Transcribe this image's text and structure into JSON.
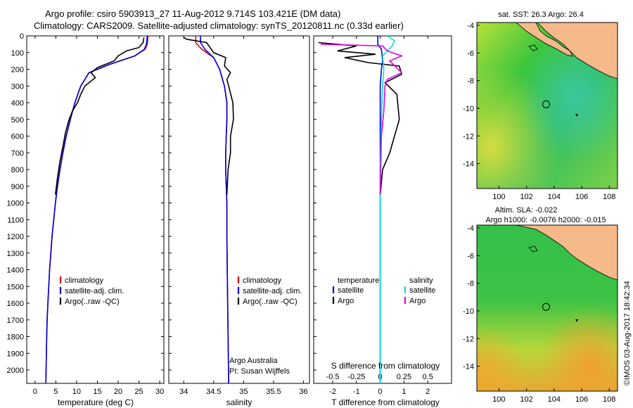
{
  "header": {
    "line1": "Argo profile: csiro 5903913_27 11-Aug-2012 9.714S 103.421E (DM data)",
    "line2": "Climatology: CARS2009. Satellite-adjusted climatology: synTS_20120811.nc (0.33d earlier)"
  },
  "colors": {
    "climatology": "#e00000",
    "satellite": "#0000e0",
    "argo": "#000000",
    "salinity_satellite": "#00e0e0",
    "salinity_argo": "#e000e0",
    "land": "#f5b98a"
  },
  "chart_data": [
    {
      "type": "line",
      "id": "temperature",
      "xlabel": "temperature (deg C)",
      "xlim": [
        -2,
        31
      ],
      "xticks": [
        0,
        5,
        10,
        15,
        20,
        25,
        30
      ],
      "ylim": [
        2080,
        0
      ],
      "yticks": [
        0,
        100,
        200,
        300,
        400,
        500,
        600,
        700,
        800,
        900,
        1000,
        1100,
        1200,
        1300,
        1400,
        1500,
        1600,
        1700,
        1800,
        1900,
        2000
      ],
      "legend": [
        "climatology",
        "satellite-adj. clim.",
        "Argo(..raw -QC)"
      ],
      "series": [
        {
          "name": "climatology",
          "x": [
            27.2,
            27.0,
            26.5,
            24.0,
            18.0,
            13.0,
            11.0,
            9.6,
            8.5,
            7.5,
            6.7,
            6.0,
            5.4,
            4.9,
            4.5,
            4.1,
            3.8,
            3.5,
            3.3,
            3.1,
            2.9,
            2.8,
            2.6
          ],
          "y": [
            0,
            50,
            80,
            120,
            170,
            220,
            300,
            400,
            500,
            600,
            700,
            800,
            900,
            1000,
            1100,
            1200,
            1300,
            1400,
            1500,
            1600,
            1700,
            1800,
            2080
          ]
        },
        {
          "name": "satellite-adj. clim.",
          "x": [
            27.0,
            26.8,
            26.3,
            24.0,
            18.0,
            13.0,
            11.0,
            9.6,
            8.5,
            7.5,
            6.7,
            6.0,
            5.4,
            4.9,
            4.5,
            4.1,
            3.8,
            3.5,
            3.3,
            3.1,
            2.9,
            2.8,
            2.6
          ],
          "y": [
            0,
            50,
            80,
            120,
            170,
            220,
            300,
            400,
            500,
            600,
            700,
            800,
            900,
            1000,
            1100,
            1200,
            1300,
            1400,
            1500,
            1600,
            1700,
            1800,
            2080
          ]
        },
        {
          "name": "Argo(..raw -QC)",
          "x": [
            26.2,
            26.0,
            25.0,
            22.0,
            20.0,
            19.0,
            15.0,
            13.5,
            14.5,
            12.0,
            11.0,
            10.2,
            9.0,
            8.2,
            7.3,
            6.8,
            6.0,
            5.4,
            4.9
          ],
          "y": [
            10,
            40,
            70,
            90,
            120,
            150,
            190,
            220,
            250,
            300,
            350,
            400,
            450,
            500,
            580,
            650,
            750,
            850,
            950
          ]
        }
      ]
    },
    {
      "type": "line",
      "id": "salinity",
      "xlabel": "salinity",
      "xlim": [
        33.75,
        36.1
      ],
      "xticks": [
        34,
        34.5,
        35,
        35.5,
        36
      ],
      "ylim": [
        2080,
        0
      ],
      "legend": [
        "climatology",
        "satellite-adj. clim.",
        "Argo(..raw -QC)"
      ],
      "annotation": [
        "Argo Australia",
        "PI: Susan Wijffels"
      ],
      "series": [
        {
          "name": "climatology",
          "x": [
            34.2,
            34.2,
            34.3,
            34.5,
            34.6,
            34.68,
            34.72,
            34.72,
            34.71,
            34.7,
            34.7,
            34.71,
            34.72,
            34.72,
            34.73,
            34.74,
            34.75
          ],
          "y": [
            0,
            40,
            80,
            130,
            200,
            300,
            400,
            500,
            600,
            700,
            800,
            900,
            1000,
            1200,
            1500,
            1800,
            2080
          ]
        },
        {
          "name": "satellite-adj. clim.",
          "x": [
            34.28,
            34.28,
            34.35,
            34.5,
            34.6,
            34.68,
            34.72,
            34.72,
            34.71,
            34.7,
            34.7,
            34.71,
            34.72,
            34.72,
            34.73,
            34.74,
            34.75
          ],
          "y": [
            0,
            40,
            80,
            130,
            200,
            300,
            400,
            500,
            600,
            700,
            800,
            900,
            1000,
            1200,
            1500,
            1800,
            2080
          ]
        },
        {
          "name": "Argo(..raw -QC)",
          "x": [
            34.0,
            34.05,
            34.38,
            34.5,
            34.7,
            34.68,
            34.78,
            34.72,
            34.75,
            34.82,
            34.83,
            34.78,
            34.78,
            34.74,
            34.72
          ],
          "y": [
            10,
            20,
            40,
            100,
            130,
            180,
            220,
            260,
            300,
            400,
            500,
            600,
            700,
            800,
            950
          ]
        }
      ]
    },
    {
      "type": "line",
      "id": "difference",
      "xlabel": "T difference from climatology",
      "xlabel2": "S difference from climatology",
      "xlim": [
        -2.8,
        3.0
      ],
      "xticks": [
        -2,
        -1,
        0,
        1,
        2
      ],
      "s_ticks": [
        "-0.5",
        "-0.25",
        "0",
        "0.25",
        "0.5"
      ],
      "ylim": [
        2080,
        0
      ],
      "legend_headers": [
        "temperature",
        "salinity"
      ],
      "legend": [
        "satellite",
        "Argo",
        "satellite",
        "Argo"
      ],
      "series": [
        {
          "name": "satellite",
          "x": [
            -0.1,
            -0.1,
            0.05,
            0.1,
            0.05,
            0.0,
            0.0,
            0.0,
            0.0,
            0.0
          ],
          "y": [
            0,
            50,
            80,
            150,
            200,
            300,
            500,
            800,
            1200,
            2080
          ]
        },
        {
          "name": "Argo",
          "x": [
            -2.6,
            -1.0,
            -1.8,
            -0.2,
            -1.5,
            -0.5,
            0.8,
            0.9,
            0.2,
            0.7,
            0.8,
            0.6,
            0.4,
            0.1,
            0.0
          ],
          "y": [
            40,
            60,
            90,
            110,
            130,
            160,
            180,
            230,
            280,
            350,
            500,
            600,
            700,
            800,
            950
          ]
        },
        {
          "name": "satellite",
          "x": [
            0.3,
            0.6,
            0.5,
            0.1,
            0.15,
            0.1,
            0.05,
            0.0,
            0.0,
            0.0
          ],
          "y": [
            0,
            30,
            60,
            120,
            200,
            300,
            500,
            800,
            1200,
            2080
          ]
        },
        {
          "name": "Argo",
          "x": [
            -2.5,
            0.1,
            0.3,
            0.9,
            0.4,
            0.9,
            0.3,
            0.2,
            0.15,
            0.05,
            0.0
          ],
          "y": [
            50,
            60,
            90,
            120,
            150,
            220,
            260,
            300,
            450,
            600,
            950
          ]
        }
      ]
    },
    {
      "type": "heatmap",
      "id": "sst-map",
      "title": "sat. SST: 26.3 Argo: 26.4",
      "xticks": [
        100,
        102,
        104,
        106,
        108
      ],
      "yticks": [
        -4,
        -6,
        -8,
        -10,
        -12,
        -14
      ],
      "xlim": [
        98.4,
        108.6
      ],
      "ylim": [
        -15.8,
        -3.8
      ],
      "profile_location": [
        103.421,
        -9.714
      ]
    },
    {
      "type": "heatmap",
      "id": "sla-map",
      "title": "Altim. SLA: -0.022",
      "subtitle": "Argo h1000: -0.0076 h2000: -0.015",
      "xticks": [
        100,
        102,
        104,
        106,
        108
      ],
      "yticks": [
        -4,
        -6,
        -8,
        -10,
        -12,
        -14
      ],
      "xlim": [
        98.4,
        108.6
      ],
      "ylim": [
        -15.8,
        -3.8
      ],
      "profile_location": [
        103.421,
        -9.714
      ]
    }
  ],
  "footer": {
    "credit": "©IMOS 03-Aug-2017 18:42:34"
  }
}
